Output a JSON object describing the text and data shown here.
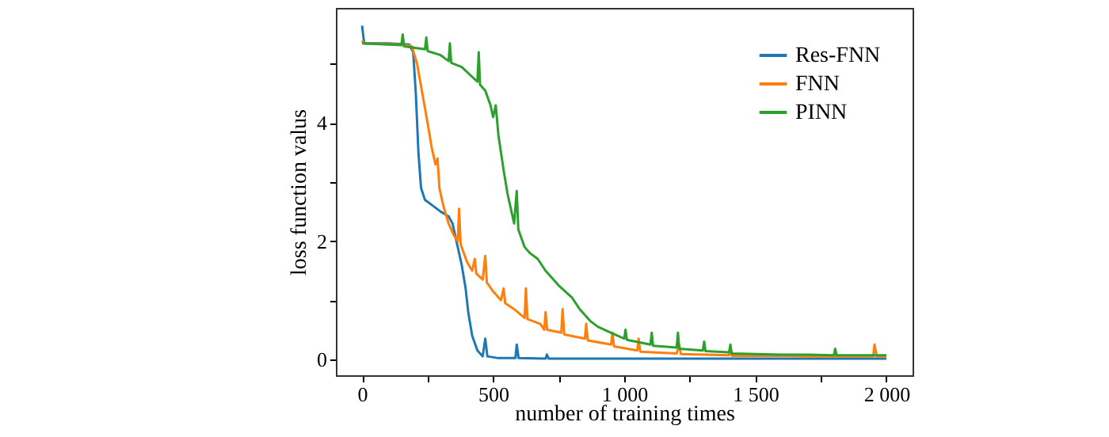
{
  "chart_data": {
    "type": "line",
    "xlabel": "number of training times",
    "ylabel": "loss function valus",
    "legend": "top right",
    "grid": false,
    "xlim": [
      -100,
      2100
    ],
    "ylim": [
      -0.27,
      5.95
    ],
    "xticks": [
      0,
      {
        "value": 250,
        "label": null
      },
      500,
      {
        "value": 750,
        "label": null
      },
      {
        "value": 1000,
        "label": "1 000"
      },
      {
        "value": 1250,
        "label": null
      },
      {
        "value": 1500,
        "label": "1 500"
      },
      {
        "value": 1750,
        "label": null
      },
      {
        "value": 2000,
        "label": "2 000"
      }
    ],
    "yticks": [
      0,
      {
        "value": 1,
        "label": null
      },
      2,
      {
        "value": 3,
        "label": null
      },
      4,
      {
        "value": 5,
        "label": null
      }
    ],
    "series": [
      {
        "name": "Res-FNN",
        "color": "#1f77b4",
        "x": [
          0,
          8,
          100,
          180,
          195,
          205,
          215,
          225,
          240,
          270,
          300,
          330,
          345,
          360,
          380,
          395,
          405,
          420,
          440,
          460,
          470,
          478,
          520,
          585,
          590,
          597,
          700,
          705,
          712,
          1000,
          1500,
          2000
        ],
        "values": [
          5.65,
          5.35,
          5.35,
          5.33,
          5.2,
          4.5,
          3.5,
          2.9,
          2.7,
          2.6,
          2.5,
          2.42,
          2.3,
          2.0,
          1.6,
          1.2,
          0.8,
          0.4,
          0.15,
          0.05,
          0.35,
          0.05,
          0.02,
          0.02,
          0.25,
          0.02,
          0.01,
          0.08,
          0.01,
          0.01,
          0.01,
          0.01
        ]
      },
      {
        "name": "FNN",
        "color": "#ff7f0e",
        "x": [
          0,
          8,
          150,
          190,
          210,
          230,
          250,
          265,
          280,
          288,
          295,
          310,
          330,
          350,
          365,
          370,
          376,
          400,
          420,
          430,
          436,
          460,
          470,
          476,
          500,
          530,
          540,
          546,
          580,
          620,
          625,
          631,
          680,
          695,
          700,
          706,
          760,
          765,
          771,
          850,
          855,
          861,
          950,
          955,
          961,
          1050,
          1055,
          1061,
          1200,
          1210,
          1216,
          1400,
          1405,
          1411,
          1600,
          1700,
          1950,
          1955,
          1963,
          2000
        ],
        "values": [
          5.4,
          5.35,
          5.33,
          5.3,
          5.0,
          4.5,
          4.0,
          3.6,
          3.3,
          3.4,
          2.9,
          2.6,
          2.3,
          2.1,
          2.0,
          2.55,
          1.95,
          1.65,
          1.5,
          1.7,
          1.45,
          1.35,
          1.75,
          1.3,
          1.15,
          1.0,
          1.2,
          0.95,
          0.85,
          0.7,
          1.2,
          0.68,
          0.6,
          0.5,
          0.8,
          0.5,
          0.45,
          0.85,
          0.42,
          0.35,
          0.6,
          0.32,
          0.25,
          0.45,
          0.22,
          0.15,
          0.35,
          0.13,
          0.1,
          0.25,
          0.09,
          0.07,
          0.2,
          0.06,
          0.06,
          0.05,
          0.05,
          0.25,
          0.05,
          0.05
        ]
      },
      {
        "name": "PINN",
        "color": "#2ca02c",
        "x": [
          0,
          100,
          150,
          155,
          160,
          240,
          245,
          250,
          300,
          330,
          335,
          340,
          380,
          440,
          445,
          450,
          470,
          490,
          500,
          510,
          520,
          530,
          540,
          555,
          570,
          580,
          590,
          596,
          620,
          640,
          670,
          700,
          750,
          800,
          830,
          870,
          900,
          950,
          1000,
          1005,
          1010,
          1100,
          1105,
          1110,
          1200,
          1205,
          1210,
          1300,
          1305,
          1310,
          1400,
          1405,
          1410,
          1600,
          1700,
          1800,
          1805,
          1810,
          2000
        ],
        "values": [
          5.35,
          5.33,
          5.32,
          5.5,
          5.3,
          5.25,
          5.45,
          5.22,
          5.15,
          5.05,
          5.35,
          5.02,
          4.95,
          4.7,
          5.2,
          4.65,
          4.55,
          4.3,
          4.1,
          4.3,
          3.8,
          3.5,
          3.2,
          2.8,
          2.5,
          2.3,
          2.85,
          2.2,
          1.9,
          1.8,
          1.7,
          1.5,
          1.25,
          1.05,
          0.85,
          0.65,
          0.55,
          0.45,
          0.35,
          0.5,
          0.33,
          0.25,
          0.45,
          0.23,
          0.2,
          0.45,
          0.18,
          0.15,
          0.3,
          0.14,
          0.12,
          0.25,
          0.1,
          0.08,
          0.08,
          0.07,
          0.18,
          0.07,
          0.07
        ]
      }
    ]
  }
}
